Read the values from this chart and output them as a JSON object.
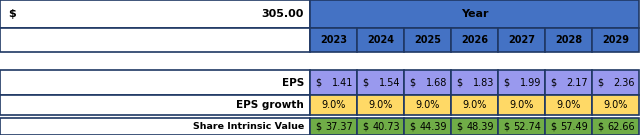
{
  "title_value": "305.00",
  "dollar_sign": "$",
  "years": [
    "2023",
    "2024",
    "2025",
    "2026",
    "2027",
    "2028",
    "2029"
  ],
  "eps_values": [
    "1.41",
    "1.54",
    "1.68",
    "1.83",
    "1.99",
    "2.17",
    "2.36"
  ],
  "eps_growth_values": [
    "9.0%",
    "9.0%",
    "9.0%",
    "9.0%",
    "9.0%",
    "9.0%",
    "9.0%"
  ],
  "share_intrinsic_values": [
    "37.37",
    "40.73",
    "44.39",
    "48.39",
    "52.74",
    "57.49",
    "62.66"
  ],
  "year_header_bg": "#4472C4",
  "eps_bg": "#9999EE",
  "eps_growth_bg": "#FFD966",
  "share_bg": "#70AD47",
  "border_color": "#1F3864",
  "text_color": "#000000",
  "white": "#FFFFFF",
  "fig_width": 6.4,
  "fig_height": 1.35,
  "dpi": 100
}
